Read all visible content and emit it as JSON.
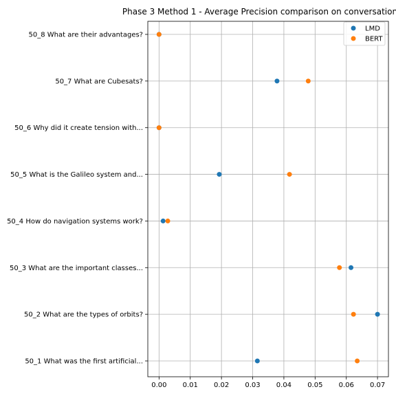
{
  "chart_data": {
    "type": "scatter",
    "title": "Phase 3 Method 1 - Average Precision comparison on conversation",
    "xlabel": "",
    "ylabel": "",
    "xlim": [
      -0.0036,
      0.0735
    ],
    "xticks": [
      0.0,
      0.01,
      0.02,
      0.03,
      0.04,
      0.05,
      0.06,
      0.07
    ],
    "xtick_labels": [
      "0.00",
      "0.01",
      "0.02",
      "0.03",
      "0.04",
      "0.05",
      "0.06",
      "0.07"
    ],
    "grid": true,
    "legend_position": "top-right",
    "categories": [
      "50_1 What was the first artificial...",
      "50_2 What are the types of orbits?",
      "50_3 What are the important classes...",
      "50_4 How do navigation systems work?",
      "50_5 What is the Galileo system and...",
      "50_6 Why did it create tension with...",
      "50_7 What are Cubesats?",
      "50_8 What are their advantages?"
    ],
    "series": [
      {
        "name": "LMD",
        "color": "#1f77b4",
        "values": [
          0.0315,
          0.07,
          0.0615,
          0.0013,
          0.0193,
          0.0,
          0.0378,
          0.0
        ]
      },
      {
        "name": "BERT",
        "color": "#ff7f0e",
        "values": [
          0.0635,
          0.0623,
          0.0578,
          0.0028,
          0.0418,
          0.0,
          0.0478,
          0.0
        ]
      }
    ]
  }
}
